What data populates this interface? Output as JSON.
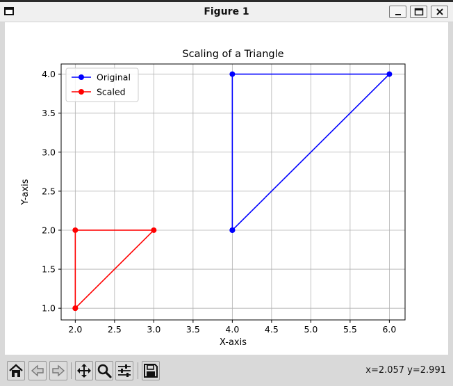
{
  "window": {
    "title": "Figure 1",
    "minimize_icon": "minimize-icon",
    "maximize_icon": "maximize-icon",
    "close_icon": "close-icon"
  },
  "toolbar": {
    "buttons": [
      {
        "name": "home-button",
        "icon": "home-icon"
      },
      {
        "name": "back-button",
        "icon": "back-arrow-icon"
      },
      {
        "name": "forward-button",
        "icon": "forward-arrow-icon"
      },
      {
        "name": "pan-button",
        "icon": "move-icon"
      },
      {
        "name": "zoom-button",
        "icon": "zoom-icon"
      },
      {
        "name": "configure-subplots-button",
        "icon": "sliders-icon"
      },
      {
        "name": "save-button",
        "icon": "save-icon"
      }
    ],
    "coords": "x=2.057 y=2.991"
  },
  "chart_data": {
    "type": "line",
    "title": "Scaling of a Triangle",
    "xlabel": "X-axis",
    "ylabel": "Y-axis",
    "xlim": [
      1.82,
      6.2
    ],
    "ylim": [
      0.85,
      4.13
    ],
    "xticks": [
      2.0,
      2.5,
      3.0,
      3.5,
      4.0,
      4.5,
      5.0,
      5.5,
      6.0
    ],
    "yticks": [
      1.0,
      1.5,
      2.0,
      2.5,
      3.0,
      3.5,
      4.0
    ],
    "xtick_labels": [
      "2.0",
      "2.5",
      "3.0",
      "3.5",
      "4.0",
      "4.5",
      "5.0",
      "5.5",
      "6.0"
    ],
    "ytick_labels": [
      "1.0",
      "1.5",
      "2.0",
      "2.5",
      "3.0",
      "3.5",
      "4.0"
    ],
    "grid": true,
    "legend_position": "upper-left",
    "series": [
      {
        "name": "Original",
        "color": "#0000ff",
        "x": [
          4,
          6,
          4,
          4
        ],
        "y": [
          2,
          4,
          4,
          2
        ]
      },
      {
        "name": "Scaled",
        "color": "#ff0000",
        "x": [
          2,
          3,
          2,
          2
        ],
        "y": [
          1,
          2,
          2,
          1
        ]
      }
    ]
  }
}
